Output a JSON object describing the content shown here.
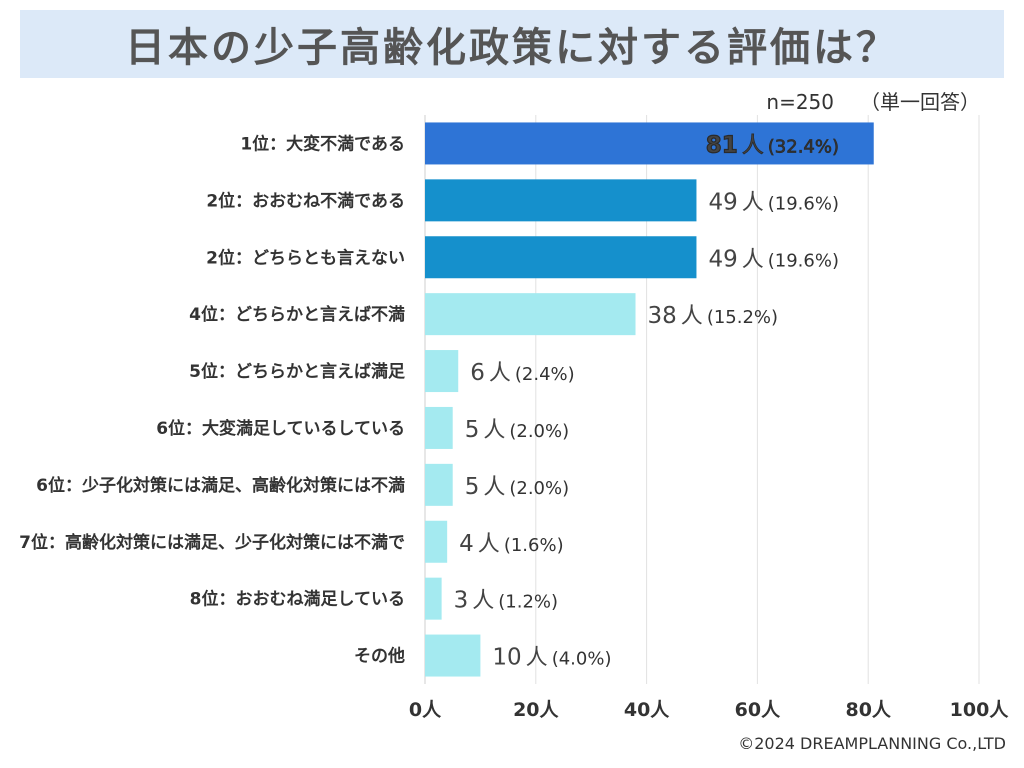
{
  "title": "日本の少子高齢化政策に対する評価は？",
  "sample_size": "n=250",
  "answer_type": "（単一回答）",
  "copyright": "©2024 DREAMPLANNING Co.,LTD",
  "colors": {
    "title_bg": "#dce9f8",
    "top_bar": "#2e74d6",
    "mid_bar": "#1590cc",
    "light_bar": "#a4eaf0"
  },
  "chart_data": {
    "type": "bar",
    "orientation": "horizontal",
    "title": "日本の少子高齢化政策に対する評価は？",
    "xlabel": "",
    "ylabel": "",
    "xlim": [
      0,
      100
    ],
    "x_ticks": [
      "0人",
      "20人",
      "40人",
      "60人",
      "80人",
      "100人"
    ],
    "unit": "人",
    "categories": [
      "1位：大変不満である",
      "2位：おおむね不満である",
      "2位：どちらとも言えない",
      "4位：どちらかと言えば不満",
      "5位：どちらかと言えば満足",
      "6位：大変満足しているしている",
      "6位：少子化対策には満足、高齢化対策には不満",
      "7位：高齢化対策には満足、少子化対策には不満で",
      "8位：おおむね満足している",
      "その他"
    ],
    "values": [
      81,
      49,
      49,
      38,
      6,
      5,
      5,
      4,
      3,
      10
    ],
    "percents": [
      "(32.4%)",
      "(19.6%)",
      "(19.6%)",
      "(15.2%)",
      "(2.4%)",
      "(2.0%)",
      "(2.0%)",
      "(1.6%)",
      "(1.2%)",
      "(4.0%)"
    ],
    "bar_colors": [
      "#2e74d6",
      "#1590cc",
      "#1590cc",
      "#a4eaf0",
      "#a4eaf0",
      "#a4eaf0",
      "#a4eaf0",
      "#a4eaf0",
      "#a4eaf0",
      "#a4eaf0"
    ],
    "grid": true
  }
}
